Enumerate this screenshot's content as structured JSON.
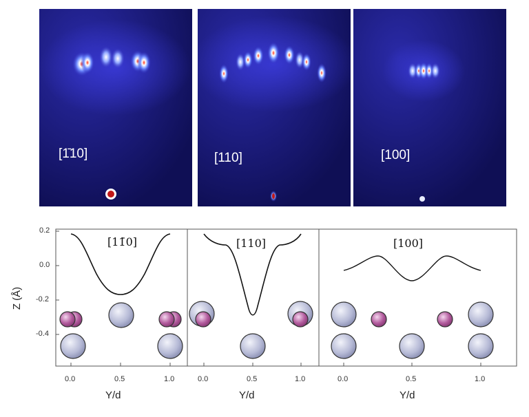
{
  "top_panels": [
    {
      "label": "[1̄​10]"
    },
    {
      "label": "[110]"
    },
    {
      "label": "[100]"
    }
  ],
  "bottom_panels": [
    {
      "label": "[11̄0]"
    },
    {
      "label": "[110]"
    },
    {
      "label": "[100]"
    }
  ],
  "y_axis": {
    "label": "Z (Å)",
    "ticks": [
      "0.2",
      "0.0",
      "-0.2",
      "-0.4"
    ]
  },
  "x_axis": {
    "label": "Y/d",
    "ticks": [
      "0.0",
      "0.5",
      "1.0"
    ]
  },
  "colors": {
    "background_dark": "#10105a",
    "spot_core": "#d02020",
    "atom_large": "#b8bdd8",
    "atom_small": "#a04a88"
  }
}
